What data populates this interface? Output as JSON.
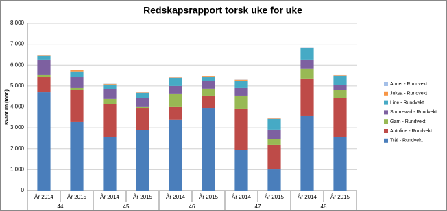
{
  "chart_data": {
    "type": "stacked-bar",
    "title": "Redskapsrapport torsk uke for uke",
    "y_label": "Kvantum (tonn)",
    "categories": [
      "År 2014",
      "År 2015",
      "År 2014",
      "År 2015",
      "År 2014",
      "År 2015",
      "År 2014",
      "År 2015",
      "År 2014",
      "År 2015"
    ],
    "groups": [
      "44",
      "45",
      "46",
      "47",
      "48"
    ],
    "series": [
      {
        "name": "Trål - Rundvekt",
        "color": "#4a7ebb",
        "values": [
          4700,
          3300,
          2580,
          2880,
          3370,
          3950,
          1930,
          1010,
          3560,
          2580
        ]
      },
      {
        "name": "Autoline - Rundvekt",
        "color": "#be4b48",
        "values": [
          720,
          1500,
          1540,
          1070,
          650,
          590,
          1990,
          1180,
          1800,
          1860
        ]
      },
      {
        "name": "Garn - Rundvekt",
        "color": "#98b954",
        "values": [
          100,
          100,
          260,
          70,
          620,
          330,
          620,
          290,
          460,
          360
        ]
      },
      {
        "name": "Snurrevad - Rundvekt",
        "color": "#7d60a0",
        "values": [
          720,
          520,
          460,
          420,
          360,
          360,
          360,
          430,
          420,
          230
        ]
      },
      {
        "name": "Line - Rundvekt",
        "color": "#46aac5",
        "values": [
          200,
          270,
          230,
          230,
          390,
          190,
          360,
          490,
          560,
          430
        ]
      },
      {
        "name": "Juksa - Rundvekt",
        "color": "#f79646",
        "values": [
          20,
          60,
          30,
          20,
          20,
          30,
          40,
          50,
          30,
          50
        ]
      },
      {
        "name": "Annet - Rundvekt",
        "color": "#a5c0e8",
        "values": [
          10,
          10,
          10,
          10,
          10,
          10,
          10,
          10,
          10,
          10
        ]
      }
    ],
    "ylim": [
      0,
      8000
    ],
    "yticks": [
      0,
      {
        "value": 1000,
        "label": "1 000"
      },
      {
        "value": 2000,
        "label": "2 000"
      },
      {
        "value": 3000,
        "label": "3 000"
      },
      {
        "value": 4000,
        "label": "4 000"
      },
      {
        "value": 5000,
        "label": "5 000"
      },
      {
        "value": 6000,
        "label": "6 000"
      },
      {
        "value": 7000,
        "label": "7 000"
      },
      {
        "value": 8000,
        "label": "8 000"
      }
    ],
    "grid": true,
    "legend": "right"
  }
}
